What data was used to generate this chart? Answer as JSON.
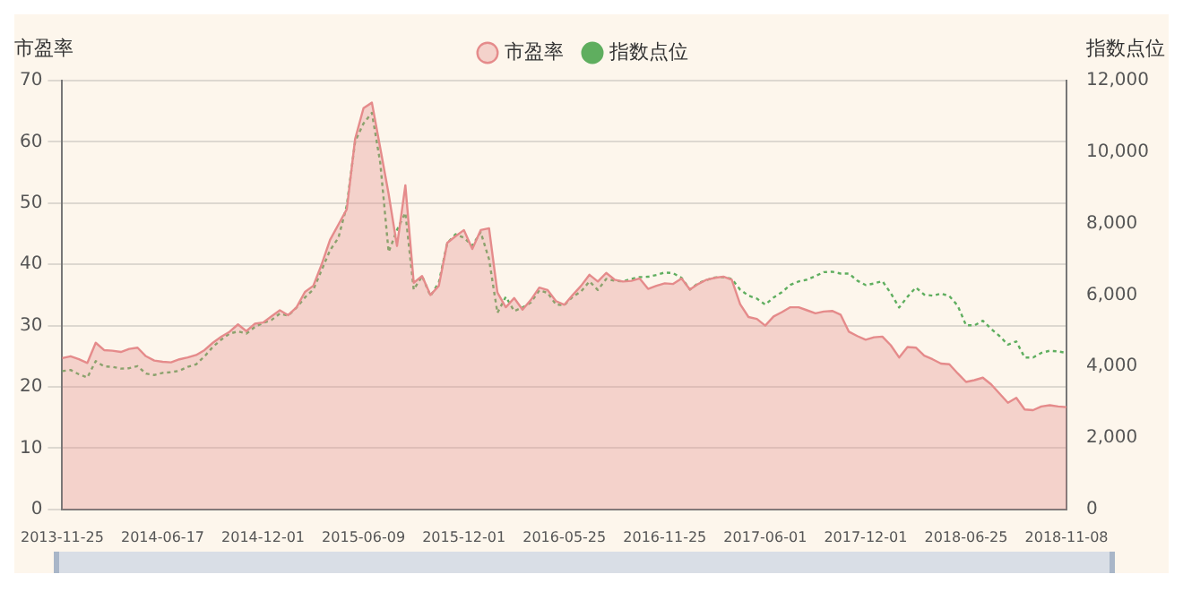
{
  "chart_data": {
    "type": "line",
    "ylabel": "市盈率",
    "y2label": "指数点位",
    "categories": [
      "2013-11-25",
      null,
      null,
      null,
      null,
      null,
      null,
      null,
      null,
      null,
      null,
      null,
      "2014-06-17",
      null,
      null,
      null,
      null,
      null,
      null,
      null,
      null,
      null,
      null,
      null,
      "2014-12-01",
      null,
      null,
      null,
      null,
      null,
      null,
      null,
      null,
      null,
      null,
      null,
      "2015-06-09",
      null,
      null,
      null,
      null,
      null,
      null,
      null,
      null,
      null,
      null,
      null,
      "2015-12-01",
      null,
      null,
      null,
      null,
      null,
      null,
      null,
      null,
      null,
      null,
      null,
      "2016-05-25",
      null,
      null,
      null,
      null,
      null,
      null,
      null,
      null,
      null,
      null,
      null,
      "2016-11-25",
      null,
      null,
      null,
      null,
      null,
      null,
      null,
      null,
      null,
      null,
      null,
      "2017-06-01",
      null,
      null,
      null,
      null,
      null,
      null,
      null,
      null,
      null,
      null,
      null,
      "2017-12-01",
      null,
      null,
      null,
      null,
      null,
      null,
      null,
      null,
      null,
      null,
      null,
      "2018-06-25",
      null,
      null,
      null,
      null,
      null,
      null,
      null,
      null,
      null,
      null,
      null,
      "2018-11-08"
    ],
    "series": [
      {
        "name": "市盈率",
        "type": "area",
        "color": "#e58b8b",
        "line_style": "solid",
        "values": [
          24.7,
          25.0,
          24.5,
          23.9,
          27.2,
          26.0,
          25.9,
          25.7,
          26.2,
          26.4,
          25.0,
          24.3,
          24.1,
          24.0,
          24.5,
          24.8,
          25.2,
          26.0,
          27.2,
          28.2,
          29.0,
          30.2,
          29.1,
          30.3,
          30.5,
          31.5,
          32.5,
          31.7,
          33.0,
          35.5,
          36.5,
          40.0,
          44.0,
          46.5,
          49.0,
          60.5,
          65.5,
          66.4,
          59.0,
          51.5,
          43.0,
          52.9,
          37.0,
          38.1,
          35.0,
          36.5,
          43.5,
          44.6,
          45.6,
          42.5,
          45.6,
          45.9,
          35.4,
          33.0,
          34.5,
          32.6,
          34.2,
          36.2,
          35.8,
          34.0,
          33.4,
          35.0,
          36.5,
          38.3,
          37.2,
          38.6,
          37.5,
          37.2,
          37.3,
          37.7,
          36.0,
          36.5,
          36.9,
          36.8,
          37.7,
          35.9,
          36.8,
          37.5,
          37.8,
          38.0,
          37.5,
          33.5,
          31.4,
          31.1,
          30.0,
          31.5,
          32.2,
          33.0,
          33.0,
          32.5,
          32.0,
          32.3,
          32.4,
          31.8,
          29.0,
          28.3,
          27.7,
          28.1,
          28.2,
          26.8,
          24.8,
          26.5,
          26.4,
          25.1,
          24.5,
          23.8,
          23.7,
          22.2,
          20.8,
          21.1,
          21.5,
          20.4,
          18.9,
          17.4,
          18.2,
          16.3,
          16.2,
          16.8,
          17.0,
          16.8,
          16.7
        ]
      },
      {
        "name": "指数点位",
        "axis": "y2",
        "color": "#5fae5f",
        "line_style": "dotted",
        "values": [
          3870,
          3900,
          3780,
          3690,
          4150,
          4000,
          3990,
          3940,
          3950,
          4010,
          3800,
          3760,
          3820,
          3840,
          3880,
          3990,
          4060,
          4280,
          4550,
          4750,
          4920,
          4980,
          4920,
          5100,
          5220,
          5300,
          5480,
          5420,
          5650,
          5930,
          6150,
          6700,
          7250,
          7600,
          8500,
          10300,
          10800,
          11100,
          9700,
          7200,
          7820,
          8300,
          6150,
          6530,
          5970,
          6350,
          7450,
          7700,
          7600,
          7380,
          7760,
          7000,
          5500,
          5950,
          5550,
          5650,
          5790,
          6130,
          6060,
          5730,
          5720,
          5950,
          6100,
          6380,
          6140,
          6450,
          6400,
          6380,
          6450,
          6500,
          6510,
          6560,
          6630,
          6610,
          6480,
          6150,
          6330,
          6420,
          6490,
          6500,
          6450,
          6150,
          5980,
          5900,
          5730,
          5930,
          6080,
          6280,
          6380,
          6430,
          6530,
          6640,
          6650,
          6600,
          6600,
          6400,
          6280,
          6320,
          6390,
          6050,
          5650,
          5950,
          6210,
          6010,
          5980,
          6040,
          5970,
          5700,
          5150,
          5150,
          5280,
          5050,
          4850,
          4610,
          4700,
          4250,
          4250,
          4380,
          4440,
          4420,
          4380
        ]
      }
    ],
    "ylim": [
      0,
      70
    ],
    "yticks": [
      0,
      10,
      20,
      30,
      40,
      50,
      60,
      70
    ],
    "y2lim": [
      0,
      12000
    ],
    "y2ticks": [
      0,
      {
        "value": 2000,
        "label": "2,000"
      },
      {
        "value": 4000,
        "label": "4,000"
      },
      {
        "value": 6000,
        "label": "6,000"
      },
      {
        "value": 8000,
        "label": "8,000"
      },
      {
        "value": 10000,
        "label": "10,000"
      },
      {
        "value": 12000,
        "label": "12,000"
      }
    ],
    "grid": "y",
    "legend": "top",
    "marker": "none"
  }
}
